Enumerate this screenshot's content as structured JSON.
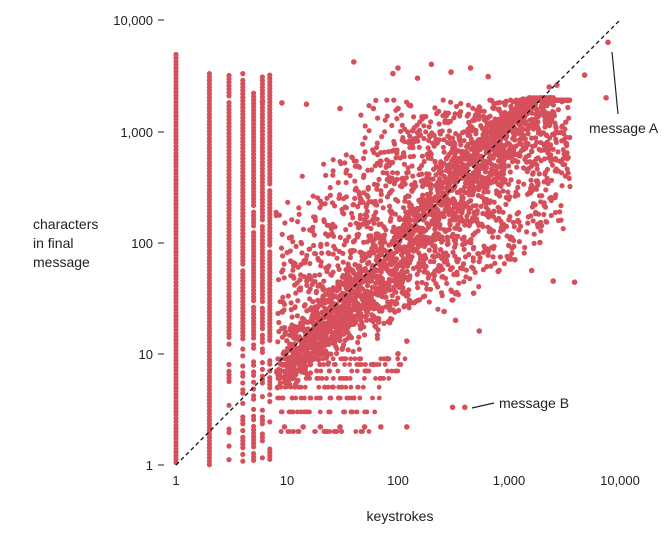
{
  "chart_data": {
    "type": "scatter",
    "x_scale": "log",
    "y_scale": "log",
    "xlabel": "keystrokes",
    "ylabel": [
      "characters",
      "in final",
      "message"
    ],
    "xlim": [
      1,
      10000
    ],
    "ylim": [
      1,
      10000
    ],
    "x_ticks": [
      {
        "value": 1,
        "label": "1"
      },
      {
        "value": 10,
        "label": "10"
      },
      {
        "value": 100,
        "label": "100"
      },
      {
        "value": 1000,
        "label": "1,000"
      },
      {
        "value": 10000,
        "label": "10,000"
      }
    ],
    "y_ticks": [
      {
        "value": 1,
        "label": "1"
      },
      {
        "value": 10,
        "label": "10"
      },
      {
        "value": 100,
        "label": "100"
      },
      {
        "value": 1000,
        "label": "1,000"
      },
      {
        "value": 10000,
        "label": "10,000"
      }
    ],
    "grid": false,
    "point_color": "#d6505c",
    "reference_line": {
      "style": "dashed",
      "color": "#111111",
      "from": [
        1,
        1
      ],
      "to": [
        10000,
        10000
      ]
    },
    "annotations": [
      {
        "label": "message A",
        "point": [
          7800,
          6300
        ]
      },
      {
        "label": "message B",
        "point": [
          400,
          3.3
        ]
      }
    ],
    "outliers": [
      [
        7800,
        6300
      ],
      [
        7500,
        2000
      ],
      [
        4800,
        3200
      ],
      [
        3900,
        44
      ],
      [
        2700,
        2600
      ],
      [
        400,
        3.3
      ],
      [
        310,
        3.3
      ],
      [
        540,
        16
      ],
      [
        330,
        20
      ],
      [
        260,
        24
      ],
      [
        1130,
        70
      ],
      [
        800,
        55
      ],
      [
        480,
        35
      ],
      [
        40,
        4200
      ],
      [
        100,
        3700
      ],
      [
        200,
        4000
      ],
      [
        90,
        3300
      ],
      [
        300,
        3400
      ],
      [
        450,
        3700
      ],
      [
        150,
        3000
      ],
      [
        650,
        3100
      ],
      [
        2300,
        2500
      ],
      [
        2500,
        45
      ],
      [
        1900,
        100
      ],
      [
        1600,
        56
      ],
      [
        1000,
        160
      ],
      [
        700,
        90
      ],
      [
        120,
        13
      ],
      [
        100,
        10
      ],
      [
        80,
        9
      ],
      [
        60,
        8
      ],
      [
        6,
        1850
      ],
      [
        9,
        1800
      ],
      [
        15,
        1750
      ],
      [
        30,
        1600
      ],
      [
        60,
        1600
      ],
      [
        100,
        1600
      ],
      [
        130,
        1700
      ],
      [
        9.5,
        2.2
      ],
      [
        14,
        2.2
      ],
      [
        20,
        2.2
      ],
      [
        30,
        2.2
      ],
      [
        50,
        2.2
      ],
      [
        70,
        2.2
      ],
      [
        120,
        2.2
      ]
    ],
    "vertical_columns": [
      {
        "x": 1,
        "ymin": 1,
        "ymax": 4900
      },
      {
        "x": 2,
        "ymin": 1,
        "ymax": 3300
      },
      {
        "x": 3,
        "ymin": 1.05,
        "ymax": 3400
      },
      {
        "x": 4,
        "ymin": 1.05,
        "ymax": 3300
      },
      {
        "x": 5,
        "ymin": 1.05,
        "ymax": 2200
      },
      {
        "x": 6,
        "ymin": 1.05,
        "ymax": 3300
      },
      {
        "x": 7,
        "ymin": 1.05,
        "ymax": 3200
      }
    ]
  }
}
